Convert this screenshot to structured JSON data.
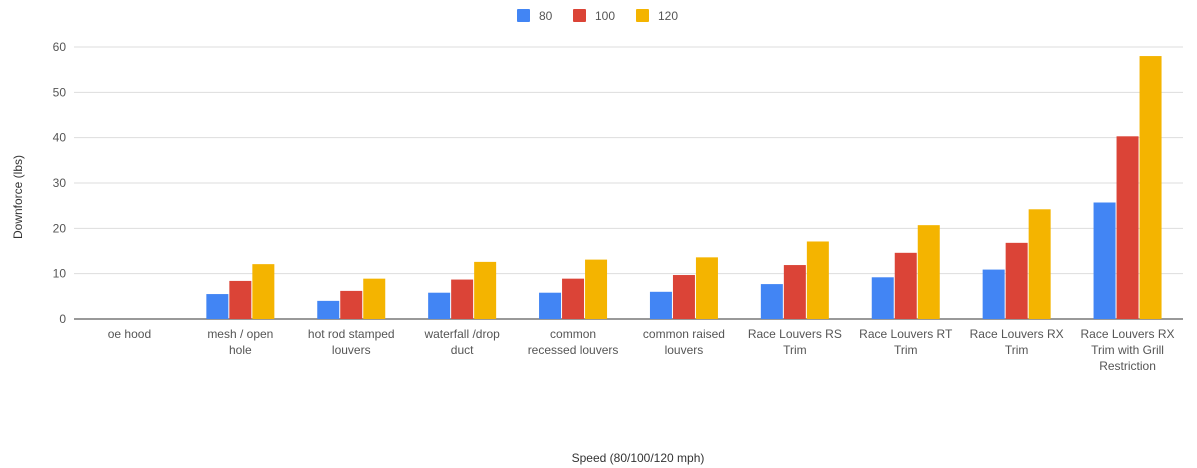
{
  "chart_data": {
    "type": "bar",
    "title": "",
    "xlabel": "Speed (80/100/120 mph)",
    "ylabel": "Downforce (lbs)",
    "ylim": [
      0,
      60
    ],
    "yticks": [
      0,
      10,
      20,
      30,
      40,
      50,
      60
    ],
    "grid": true,
    "legend_position": "top",
    "categories": [
      [
        "oe hood"
      ],
      [
        "mesh / open",
        "hole"
      ],
      [
        "hot rod stamped",
        "louvers"
      ],
      [
        "waterfall /drop",
        "duct"
      ],
      [
        "common",
        "recessed louvers"
      ],
      [
        "common raised",
        "louvers"
      ],
      [
        "Race Louvers RS",
        "Trim"
      ],
      [
        "Race Louvers RT",
        "Trim"
      ],
      [
        "Race Louvers RX",
        "Trim"
      ],
      [
        "Race Louvers RX",
        "Trim with Grill",
        "Restriction"
      ]
    ],
    "series": [
      {
        "name": "80",
        "color": "#4285f4",
        "values": [
          0,
          5.5,
          4,
          5.8,
          5.8,
          6,
          7.7,
          9.2,
          10.9,
          25.7
        ]
      },
      {
        "name": "100",
        "color": "#db4437",
        "values": [
          0,
          8.4,
          6.2,
          8.7,
          8.9,
          9.7,
          11.9,
          14.6,
          16.8,
          40.3
        ]
      },
      {
        "name": "120",
        "color": "#f4b400",
        "values": [
          0,
          12.1,
          8.9,
          12.6,
          13.1,
          13.6,
          17.1,
          20.7,
          24.2,
          58
        ]
      }
    ]
  }
}
